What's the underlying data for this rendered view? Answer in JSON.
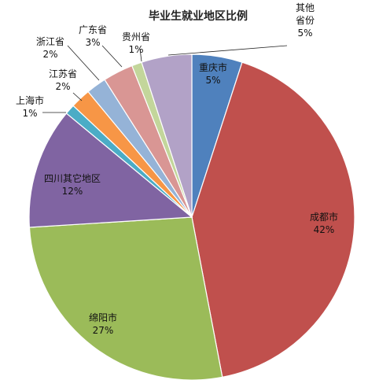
{
  "chart_data": {
    "type": "pie",
    "title": "毕业生就业地区比例",
    "slices": [
      {
        "name": "重庆市",
        "value": 5,
        "pct_label": "5%",
        "color": "#4F81BD"
      },
      {
        "name": "成都市",
        "value": 42,
        "pct_label": "42%",
        "color": "#C0504D"
      },
      {
        "name": "绵阳市",
        "value": 27,
        "pct_label": "27%",
        "color": "#9BBB59"
      },
      {
        "name": "四川其它地区",
        "value": 12,
        "pct_label": "12%",
        "color": "#8064A2"
      },
      {
        "name": "上海市",
        "value": 1,
        "pct_label": "1%",
        "color": "#4BACC6"
      },
      {
        "name": "江苏省",
        "value": 2,
        "pct_label": "2%",
        "color": "#F79646"
      },
      {
        "name": "浙江省",
        "value": 2,
        "pct_label": "2%",
        "color": "#95B3D7"
      },
      {
        "name": "广东省",
        "value": 3,
        "pct_label": "3%",
        "color": "#D99694"
      },
      {
        "name": "贵州省",
        "value": 1,
        "pct_label": "1%",
        "color": "#C3D69B"
      },
      {
        "name": "其他省份",
        "value": 5,
        "pct_label": "5%",
        "color": "#B2A2C7"
      }
    ]
  }
}
